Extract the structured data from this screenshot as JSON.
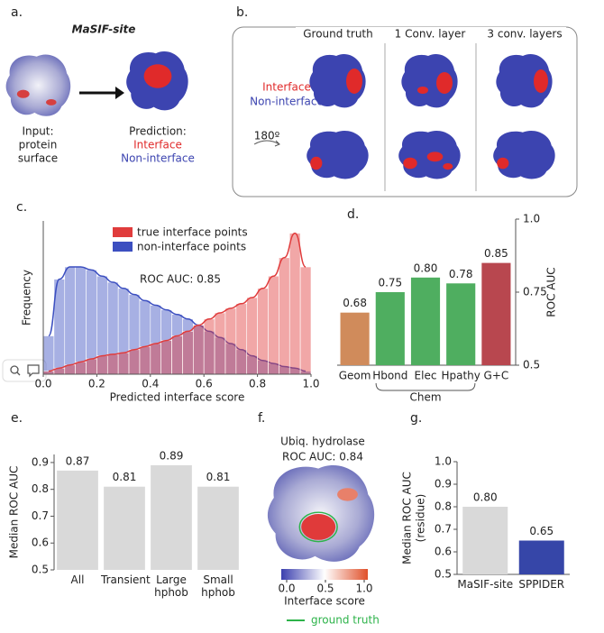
{
  "panel_labels": [
    "a.",
    "b.",
    "c.",
    "d.",
    "e.",
    "f.",
    "g."
  ],
  "panel_a": {
    "title": "MaSIF-site",
    "input": [
      "Input:",
      "protein",
      "surface"
    ],
    "prediction": [
      "Prediction:",
      "Interface",
      "Non-interface"
    ]
  },
  "panel_b": {
    "columns": [
      "Ground truth",
      "1 Conv. layer",
      "3 conv. layers"
    ],
    "legend": [
      "Interface",
      "Non-interface"
    ],
    "rotation": "180º"
  },
  "panel_f": {
    "title": "Ubiq. hydrolase",
    "subtitle": "ROC AUC: 0.84",
    "ground_truth": "ground truth",
    "colorbar": {
      "label": "Interface score",
      "lim": [
        0,
        1
      ],
      "ticks": [
        {
          "value": 0,
          "label": "0.0"
        },
        0.5,
        {
          "value": 1,
          "label": "1.0"
        }
      ]
    }
  },
  "chart_data": [
    {
      "type": "histogram",
      "annotation": "ROC AUC: 0.85",
      "xlabel": "Predicted interface score",
      "ylabel": "Frequency",
      "bins": [
        0,
        0.04,
        0.08,
        0.12,
        0.16,
        0.2,
        0.24,
        0.28,
        0.32,
        0.36,
        0.4,
        0.44,
        0.48,
        0.52,
        0.56,
        0.6,
        0.64,
        0.68,
        0.72,
        0.76,
        0.8,
        0.84,
        0.88,
        0.92,
        0.96,
        1
      ],
      "series": [
        {
          "name": "true interface points",
          "color": "#e03c3c",
          "values": [
            2,
            4,
            6,
            8,
            10,
            12,
            13,
            14,
            16,
            18,
            20,
            22,
            25,
            28,
            32,
            36,
            40,
            43,
            46,
            50,
            56,
            64,
            76,
            92,
            70
          ]
        },
        {
          "name": "non-interface points",
          "color": "#3c4fc0",
          "values": [
            25,
            62,
            70,
            70,
            68,
            64,
            60,
            56,
            52,
            48,
            45,
            42,
            39,
            36,
            32,
            28,
            24,
            20,
            16,
            12,
            9,
            7,
            5,
            4,
            2
          ]
        }
      ],
      "xlim": [
        0,
        1
      ],
      "xticks": [
        {
          "value": 0,
          "label": "0.0"
        },
        0.2,
        0.4,
        0.6,
        0.8,
        {
          "value": 1,
          "label": "1.0"
        }
      ],
      "ylim": [
        0,
        100
      ]
    },
    {
      "type": "bar",
      "categories": [
        "Geom",
        "Hbond",
        "Elec",
        "Hpathy",
        "G+C"
      ],
      "values": [
        0.68,
        0.75,
        0.8,
        0.78,
        0.85
      ],
      "value_labels": [
        "0.68",
        "0.75",
        "0.80",
        "0.78",
        "0.85"
      ],
      "colors": [
        "#d08b5b",
        "#4fae60",
        "#4fae60",
        "#4fae60",
        "#b8474f"
      ],
      "ylim": [
        0.5,
        1.0
      ],
      "yticks": [
        0.5,
        0.75,
        {
          "value": 1,
          "label": "1.0"
        }
      ],
      "ylabel": "ROC AUC",
      "group_label": "Chem"
    },
    {
      "type": "bar",
      "categories": [
        "All",
        "Transient",
        "Large hphob",
        "Small hphob"
      ],
      "values": [
        0.87,
        0.81,
        0.89,
        0.81
      ],
      "color": "#d9d9d9",
      "ylim": [
        0.5,
        0.93
      ],
      "yticks": [
        0.5,
        0.6,
        0.7,
        0.8,
        0.9
      ],
      "ylabel": "Median ROC AUC"
    },
    {
      "type": "bar",
      "categories": [
        "MaSIF-site",
        "SPPIDER"
      ],
      "values": [
        0.8,
        0.65
      ],
      "value_labels": [
        "0.80",
        "0.65"
      ],
      "colors": [
        "#d9d9d9",
        "#3646a8"
      ],
      "ylim": [
        0.5,
        1.0
      ],
      "yticks": [
        0.5,
        0.6,
        0.7,
        0.8,
        0.9,
        {
          "value": 1,
          "label": "1.0"
        }
      ],
      "ylabel": [
        "Median ROC AUC",
        "(residue)"
      ]
    }
  ]
}
